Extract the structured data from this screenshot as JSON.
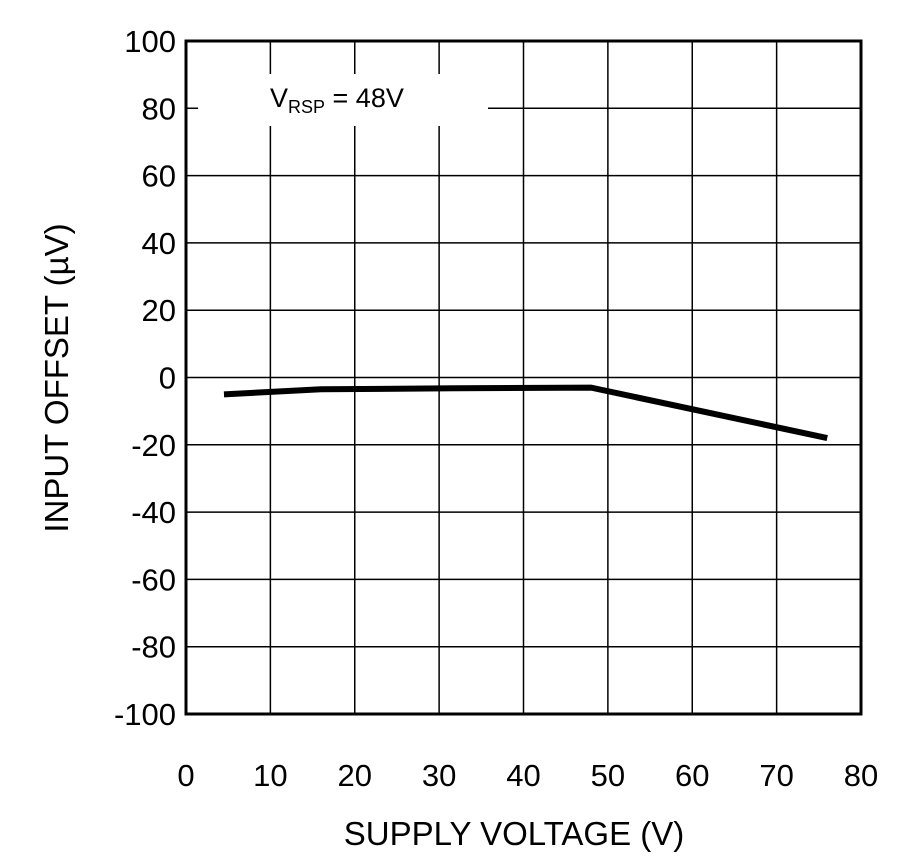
{
  "chart_data": {
    "type": "line",
    "title": "",
    "xlabel": "SUPPLY VOLTAGE (V)",
    "ylabel": "INPUT OFFSET (µV)",
    "xlim": [
      0,
      80
    ],
    "ylim": [
      -100,
      100
    ],
    "grid": true,
    "x_ticks": [
      0,
      10,
      20,
      30,
      40,
      50,
      60,
      70,
      80
    ],
    "y_ticks": [
      100,
      80,
      60,
      40,
      20,
      0,
      -20,
      -40,
      -60,
      -80,
      -100
    ],
    "x_tick_labels": [
      "0",
      "10",
      "20",
      "30",
      "40",
      "50",
      "60",
      "70",
      "80"
    ],
    "y_tick_labels": [
      "100",
      "80",
      "60",
      "40",
      "20",
      "0",
      "-20",
      "-40",
      "-60",
      "-80",
      "-100"
    ],
    "annotation": {
      "main": "V",
      "subscript": "RSP",
      "suffix": " = 48V"
    },
    "series": [
      {
        "name": "Input offset",
        "x": [
          4.5,
          16,
          32,
          48,
          76
        ],
        "y": [
          -5,
          -3.5,
          -3.2,
          -3,
          -18
        ]
      }
    ],
    "colors": {
      "line": "#000000",
      "grid": "#000000",
      "background": "#ffffff"
    }
  }
}
